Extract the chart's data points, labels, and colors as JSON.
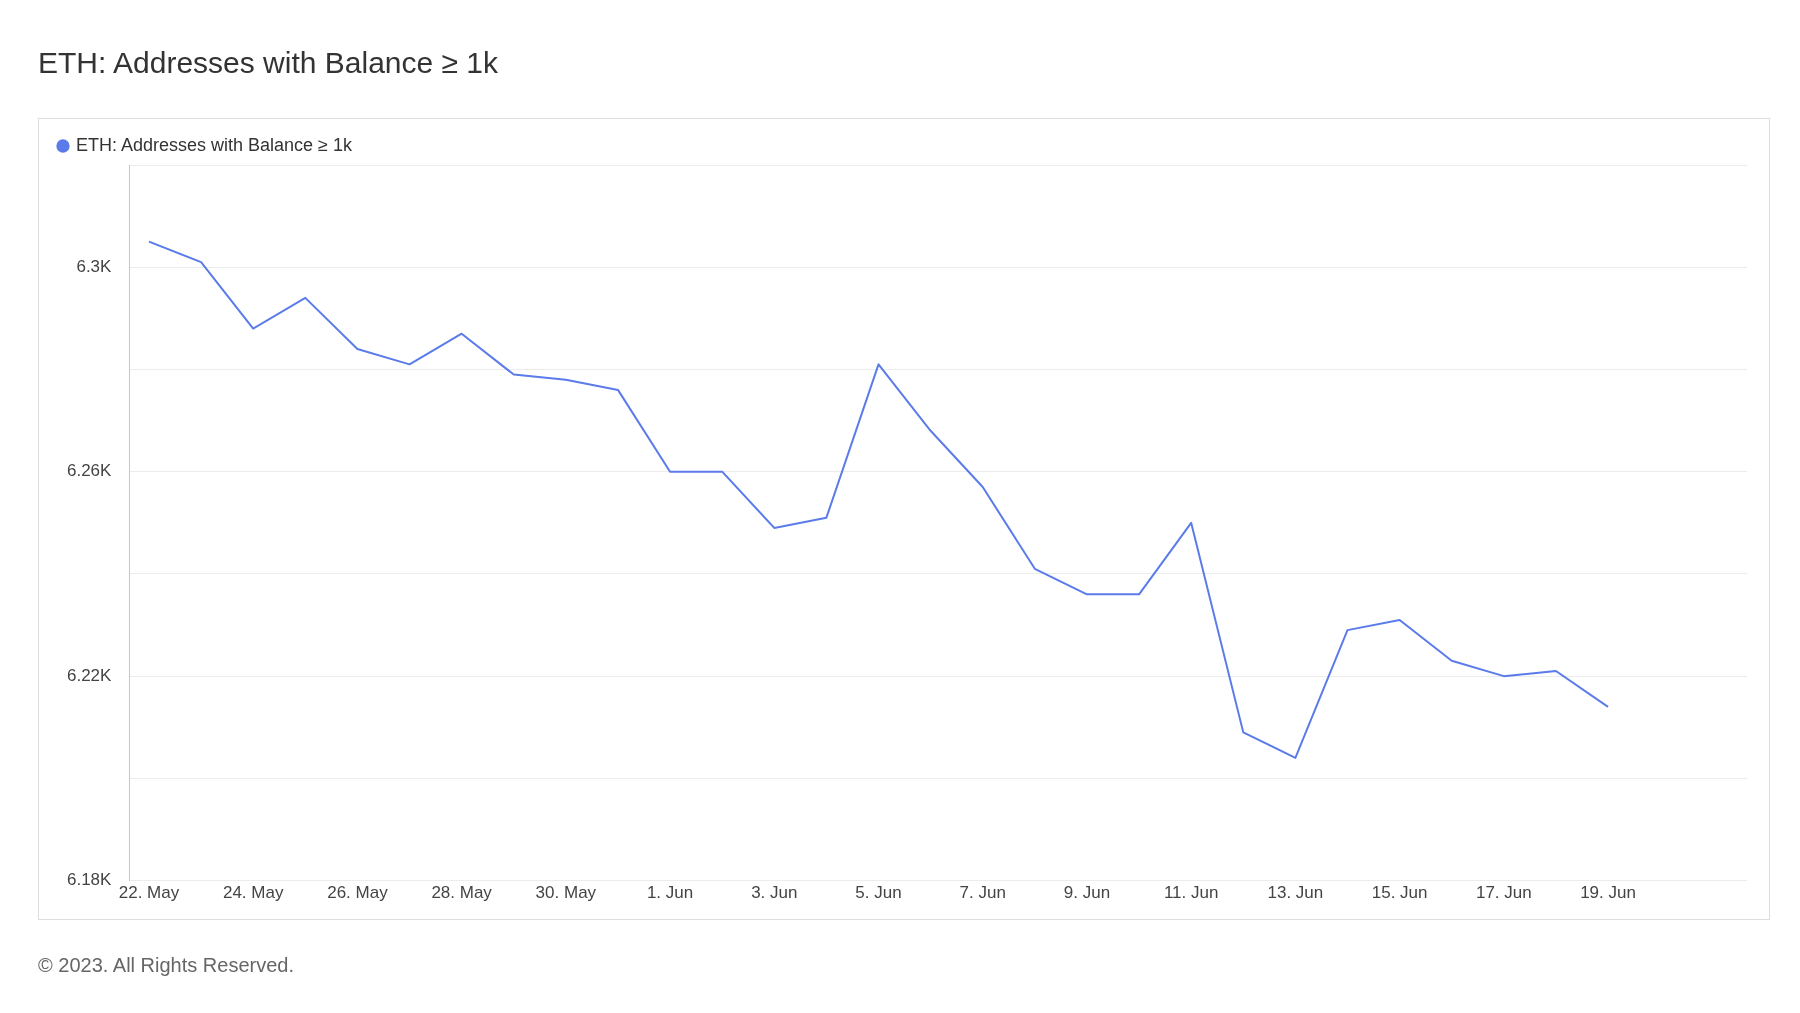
{
  "chart_data": {
    "type": "line",
    "title": "ETH: Addresses with Balance ≥ 1k",
    "x": [
      "--05-22",
      "--05-23",
      "--05-24",
      "--05-25",
      "--05-26",
      "--05-27",
      "--05-28",
      "--05-29",
      "--05-30",
      "--05-31",
      "--06-01",
      "--06-02",
      "--06-03",
      "--06-04",
      "--06-05",
      "--06-06",
      "--06-07",
      "--06-08",
      "--06-09",
      "--06-10",
      "--06-11",
      "--06-12",
      "--06-13",
      "--06-14",
      "--06-15",
      "--06-16",
      "--06-17",
      "--06-18",
      "--06-19"
    ],
    "series": [
      {
        "name": "ETH: Addresses with Balance ≥ 1k",
        "color": "#5b7bea",
        "values": [
          6305,
          6301,
          6288,
          6294,
          6284,
          6281,
          6287,
          6279,
          6278,
          6276,
          6260,
          6260,
          6249,
          6251,
          6281,
          6268,
          6257,
          6241,
          6236,
          6236,
          6250,
          6209,
          6204,
          6229,
          6231,
          6223,
          6220,
          6221,
          6214
        ]
      }
    ],
    "xlim": [
      "--05-21T15:00",
      "--06-21T16:00"
    ],
    "xticks": [
      {
        "value": "--05-22",
        "label": "22. May"
      },
      {
        "value": "--05-24",
        "label": "24. May"
      },
      {
        "value": "--05-26",
        "label": "26. May"
      },
      {
        "value": "--05-28",
        "label": "28. May"
      },
      {
        "value": "--05-30",
        "label": "30. May"
      },
      {
        "value": "--06-01",
        "label": "1. Jun"
      },
      {
        "value": "--06-03",
        "label": "3. Jun"
      },
      {
        "value": "--06-05",
        "label": "5. Jun"
      },
      {
        "value": "--06-07",
        "label": "7. Jun"
      },
      {
        "value": "--06-09",
        "label": "9. Jun"
      },
      {
        "value": "--06-11",
        "label": "11. Jun"
      },
      {
        "value": "--06-13",
        "label": "13. Jun"
      },
      {
        "value": "--06-15",
        "label": "15. Jun"
      },
      {
        "value": "--06-17",
        "label": "17. Jun"
      },
      {
        "value": "--06-19",
        "label": "19. Jun"
      }
    ],
    "ylim": [
      6180,
      6320
    ],
    "yticks": [
      {
        "value": 6180,
        "label": "6.18K"
      },
      {
        "value": 6200,
        "label": null
      },
      {
        "value": 6220,
        "label": "6.22K"
      },
      {
        "value": 6240,
        "label": null
      },
      {
        "value": 6260,
        "label": "6.26K"
      },
      {
        "value": 6280,
        "label": null
      },
      {
        "value": 6300,
        "label": "6.3K"
      },
      {
        "value": 6320,
        "label": null
      }
    ],
    "grid": "y",
    "legend": "top left",
    "marker": "none",
    "line_style": "solid",
    "annotations": [
      "© 2023. All Rights Reserved."
    ]
  }
}
